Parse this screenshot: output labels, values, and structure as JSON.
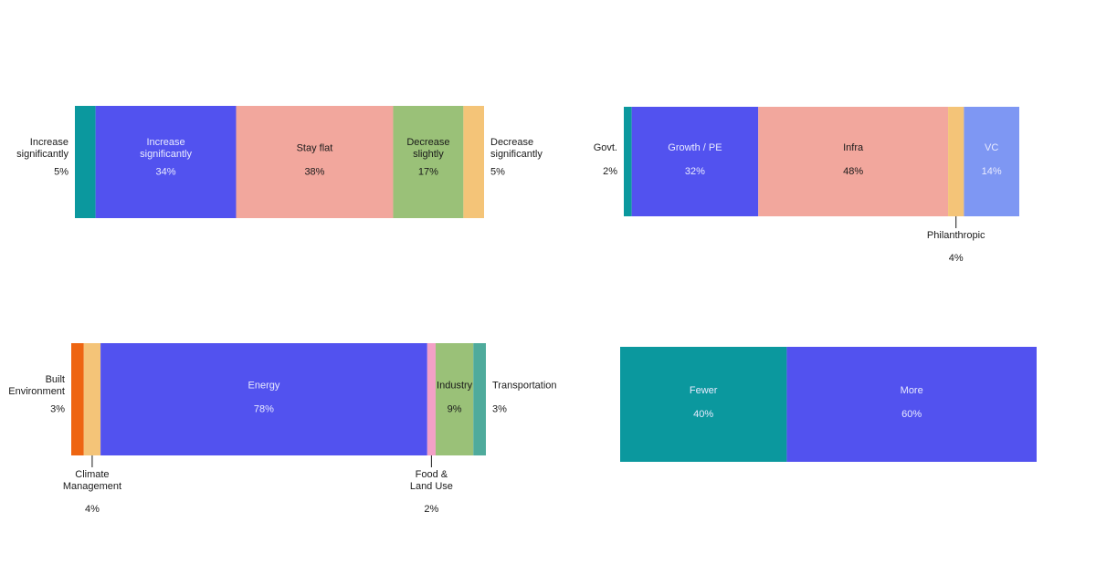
{
  "colors": {
    "teal": "#0b989e",
    "indigo": "#5252ef",
    "salmon": "#f2a79d",
    "green": "#9ac178",
    "sand": "#f4c478",
    "periwinkle": "#7e97f3",
    "orange": "#ee6511",
    "pink": "#f3a0c6",
    "teal_light": "#4fab9c"
  },
  "chart_data": [
    {
      "id": "outlook",
      "type": "bar",
      "orientation": "horizontal-stacked",
      "unit": "%",
      "segments": [
        {
          "label": "Increase significantly",
          "value": 5,
          "value_label": "5%",
          "color": "#0b989e",
          "label_position": "outside-left"
        },
        {
          "label": "Increase significantly",
          "value": 34,
          "value_label": "34%",
          "color": "#5252ef",
          "label_position": "inside"
        },
        {
          "label": "Stay flat",
          "value": 38,
          "value_label": "38%",
          "color": "#f2a79d",
          "label_position": "inside"
        },
        {
          "label": "Decrease slightly",
          "value": 17,
          "value_label": "17%",
          "color": "#9ac178",
          "label_position": "inside"
        },
        {
          "label": "Decrease significantly",
          "value": 5,
          "value_label": "5%",
          "color": "#f4c478",
          "label_position": "outside-right"
        }
      ]
    },
    {
      "id": "capital-source",
      "type": "bar",
      "orientation": "horizontal-stacked",
      "unit": "%",
      "segments": [
        {
          "label": "Govt.",
          "value": 2,
          "value_label": "2%",
          "color": "#0b989e",
          "label_position": "outside-left"
        },
        {
          "label": "Growth / PE",
          "value": 32,
          "value_label": "32%",
          "color": "#5252ef",
          "label_position": "inside"
        },
        {
          "label": "Infra",
          "value": 48,
          "value_label": "48%",
          "color": "#f2a79d",
          "label_position": "inside"
        },
        {
          "label": "Philanthropic",
          "value": 4,
          "value_label": "4%",
          "color": "#f4c478",
          "label_position": "below"
        },
        {
          "label": "VC",
          "value": 14,
          "value_label": "14%",
          "color": "#7e97f3",
          "label_position": "inside"
        }
      ]
    },
    {
      "id": "sector",
      "type": "bar",
      "orientation": "horizontal-stacked",
      "unit": "%",
      "segments": [
        {
          "label": "Built Environment",
          "value": 3,
          "value_label": "3%",
          "color": "#ee6511",
          "label_position": "outside-left"
        },
        {
          "label": "Climate Management",
          "value": 4,
          "value_label": "4%",
          "color": "#f4c478",
          "label_position": "below"
        },
        {
          "label": "Energy",
          "value": 78,
          "value_label": "78%",
          "color": "#5252ef",
          "label_position": "inside"
        },
        {
          "label": "Food & Land Use",
          "value": 2,
          "value_label": "2%",
          "color": "#f3a0c6",
          "label_position": "below"
        },
        {
          "label": "Industry",
          "value": 9,
          "value_label": "9%",
          "color": "#9ac178",
          "label_position": "inside"
        },
        {
          "label": "Transportation",
          "value": 3,
          "value_label": "3%",
          "color": "#4fab9c",
          "label_position": "outside-right"
        }
      ]
    },
    {
      "id": "fewer-more",
      "type": "bar",
      "orientation": "horizontal-stacked",
      "unit": "%",
      "segments": [
        {
          "label": "Fewer",
          "value": 40,
          "value_label": "40%",
          "color": "#0b989e",
          "label_position": "inside"
        },
        {
          "label": "More",
          "value": 60,
          "value_label": "60%",
          "color": "#5252ef",
          "label_position": "inside"
        }
      ]
    }
  ]
}
